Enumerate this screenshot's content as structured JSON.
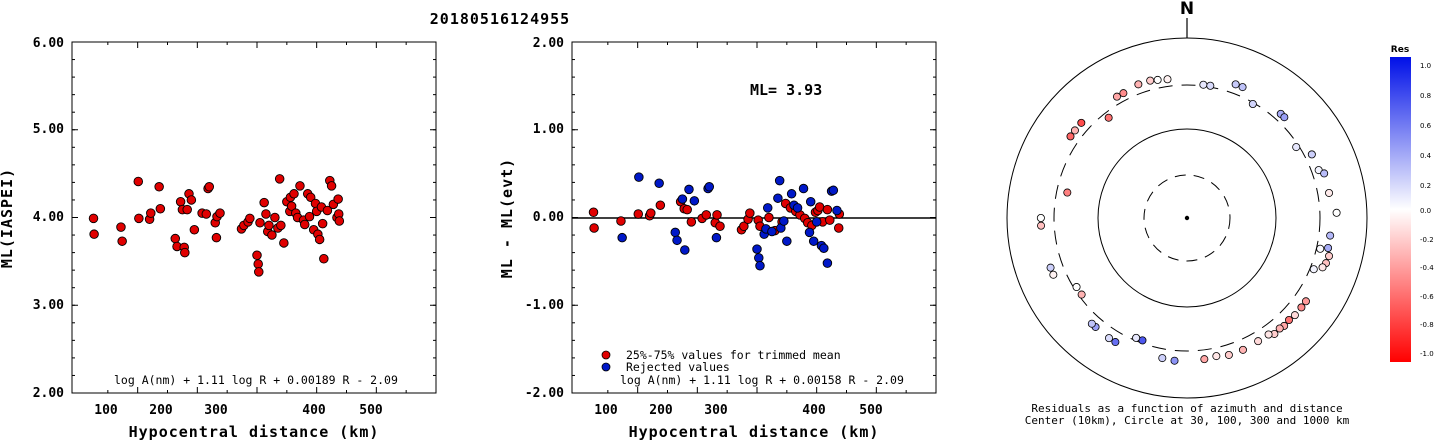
{
  "event_id": "20180516124955",
  "colors": {
    "trimmed": "#e00000",
    "rejected": "#0018c8",
    "frame": "#000000"
  },
  "left_chart": {
    "ylabel": "ML(IASPEI)",
    "xlabel": "Hypocentral distance (km)",
    "formula": "log A(nm) + 1.11 log R + 0.00189 R - 2.09",
    "ytick_labels": [
      "2.00",
      "3.00",
      "4.00",
      "5.00",
      "6.00"
    ],
    "xtick_labels": [
      "100",
      "200",
      "300",
      "400",
      "500"
    ]
  },
  "mid_chart": {
    "ylabel": "ML - ML(evt)",
    "xlabel": "Hypocentral distance (km)",
    "formula": "log A(nm) + 1.11 log R + 0.00158 R - 2.09",
    "ml_text": "ML= 3.93",
    "legend_trimmed": "25%-75% values for trimmed mean",
    "legend_rejected": "Rejected values",
    "ytick_labels": [
      "-2.00",
      "-1.00",
      "0.00",
      "1.00",
      "2.00"
    ],
    "xtick_labels": [
      "100",
      "200",
      "300",
      "400",
      "500"
    ]
  },
  "polar": {
    "north_label": "N",
    "caption_line1": "Residuals as a function of azimuth and distance",
    "caption_line2": "Center (10km), Circle at 30, 100, 300 and 1000 km",
    "colorbar_title": "Res",
    "colorbar_labels": [
      "1.0",
      "0.8",
      "0.6",
      "0.4",
      "0.2",
      "0.0",
      "-0.2",
      "-0.4",
      "-0.6",
      "-0.8",
      "-1.0"
    ]
  },
  "chart_data": [
    {
      "type": "scatter",
      "title": "20180516124955",
      "xlabel": "Hypocentral distance (km)",
      "ylabel": "ML(IASPEI)",
      "xlim": [
        0,
        600
      ],
      "ylim": [
        2,
        6
      ],
      "x": [
        26,
        27,
        72,
        74,
        101,
        102,
        120,
        122,
        136,
        138,
        163,
        166,
        172,
        175,
        178,
        179,
        183,
        186,
        190,
        195,
        208,
        215,
        218,
        220,
        230,
        232,
        233,
        238,
        274,
        278,
        285,
        288,
        300,
        302,
        303,
        305,
        312,
        315,
        318,
        320,
        325,
        330,
        335,
        338,
        340,
        345,
        350,
        355,
        356,
        358,
        362,
        365,
        368,
        372,
        378,
        380,
        385,
        388,
        390,
        395,
        398,
        400,
        402,
        405,
        408,
        410,
        412,
        418,
        422,
        425,
        428,
        434,
        436,
        437,
        438
      ],
      "y": [
        3.99,
        3.81,
        3.89,
        3.73,
        4.41,
        3.99,
        3.98,
        4.05,
        4.35,
        4.1,
        3.76,
        3.67,
        4.18,
        4.09,
        3.66,
        3.6,
        4.09,
        4.27,
        4.2,
        3.86,
        4.05,
        4.04,
        4.33,
        4.35,
        3.94,
        3.77,
        4.01,
        4.05,
        3.87,
        3.91,
        3.95,
        3.99,
        3.57,
        3.47,
        3.38,
        3.94,
        4.17,
        4.04,
        3.84,
        3.91,
        3.8,
        4.0,
        3.88,
        4.44,
        3.91,
        3.71,
        4.18,
        4.07,
        4.23,
        4.13,
        4.27,
        4.05,
        4.0,
        4.36,
        3.97,
        3.92,
        4.27,
        4.01,
        4.23,
        3.86,
        4.16,
        4.07,
        3.81,
        3.75,
        4.12,
        3.93,
        3.53,
        4.08,
        4.42,
        4.36,
        4.15,
        4.0,
        4.21,
        4.04,
        3.96
      ],
      "series": [
        {
          "name": "25%-75% values for trimmed mean",
          "color": "#e00000"
        }
      ]
    },
    {
      "type": "scatter",
      "xlabel": "Hypocentral distance (km)",
      "ylabel": "ML - ML(evt)",
      "xlim": [
        0,
        600
      ],
      "ylim": [
        -2,
        2
      ],
      "annotation": "ML= 3.93",
      "reference_line_y": 0,
      "series": [
        {
          "name": "25%-75% values for trimmed mean",
          "color": "#e00000",
          "x": [
            26,
            27,
            72,
            101,
            120,
            122,
            138,
            172,
            178,
            183,
            190,
            208,
            215,
            230,
            233,
            238,
            274,
            278,
            285,
            288,
            302,
            305,
            320,
            330,
            342,
            348,
            356,
            365,
            372,
            380,
            385,
            392,
            398,
            402,
            405,
            410,
            418,
            422,
            437,
            438
          ],
          "y": [
            0.06,
            -0.12,
            -0.04,
            0.04,
            0.02,
            0.05,
            0.14,
            0.18,
            0.1,
            0.09,
            -0.05,
            -0.01,
            0.03,
            -0.06,
            0.03,
            -0.1,
            -0.14,
            -0.1,
            -0.02,
            0.05,
            -0.03,
            -0.1,
            0.0,
            -0.15,
            -0.05,
            0.16,
            0.11,
            0.07,
            0.03,
            -0.01,
            -0.06,
            -0.09,
            0.06,
            0.08,
            0.12,
            -0.05,
            0.09,
            -0.03,
            -0.12,
            0.04
          ]
        },
        {
          "name": "Rejected values",
          "color": "#0018c8",
          "x": [
            74,
            102,
            136,
            163,
            166,
            175,
            179,
            186,
            195,
            218,
            220,
            232,
            300,
            303,
            305,
            312,
            315,
            318,
            325,
            335,
            338,
            340,
            345,
            350,
            358,
            362,
            368,
            378,
            388,
            390,
            395,
            400,
            408,
            412,
            418,
            425,
            428,
            434
          ],
          "y": [
            -0.23,
            0.46,
            0.39,
            -0.17,
            -0.26,
            0.21,
            -0.37,
            0.32,
            0.19,
            0.33,
            0.35,
            -0.23,
            -0.36,
            -0.46,
            -0.55,
            -0.19,
            -0.13,
            0.11,
            -0.16,
            0.22,
            0.42,
            -0.12,
            -0.04,
            -0.27,
            0.27,
            0.14,
            0.11,
            0.33,
            -0.17,
            0.18,
            -0.27,
            -0.05,
            -0.32,
            -0.35,
            -0.52,
            0.3,
            0.31,
            0.08
          ]
        }
      ]
    },
    {
      "type": "scatter",
      "subtype": "polar",
      "description_printed": "Residuals as a function of azimuth and distance",
      "rings_km": [
        30,
        100,
        300,
        1000
      ],
      "center_km": 10,
      "colorbar_range": [
        -1.0,
        1.0
      ],
      "points": [
        {
          "az": 7,
          "dist": 310,
          "res": 0.1
        },
        {
          "az": 10,
          "dist": 310,
          "res": 0.15
        },
        {
          "az": 20,
          "dist": 380,
          "res": 0.22
        },
        {
          "az": 23,
          "dist": 380,
          "res": 0.25
        },
        {
          "az": 30,
          "dist": 290,
          "res": 0.18
        },
        {
          "az": 42,
          "dist": 360,
          "res": 0.35
        },
        {
          "az": 44,
          "dist": 360,
          "res": 0.4
        },
        {
          "az": 57,
          "dist": 280,
          "res": 0.1
        },
        {
          "az": 63,
          "dist": 360,
          "res": 0.2
        },
        {
          "az": 70,
          "dist": 360,
          "res": 0.05
        },
        {
          "az": 72,
          "dist": 400,
          "res": 0.28
        },
        {
          "az": 80,
          "dist": 400,
          "res": -0.08
        },
        {
          "az": 88,
          "dist": 460,
          "res": 0.0
        },
        {
          "az": 97,
          "dist": 400,
          "res": 0.3
        },
        {
          "az": 102,
          "dist": 400,
          "res": 0.35
        },
        {
          "az": 103,
          "dist": 330,
          "res": 0.02
        },
        {
          "az": 105,
          "dist": 430,
          "res": -0.2
        },
        {
          "az": 108,
          "dist": 420,
          "res": -0.25
        },
        {
          "az": 110,
          "dist": 400,
          "res": -0.1
        },
        {
          "az": 112,
          "dist": 330,
          "res": 0.05
        },
        {
          "az": 125,
          "dist": 410,
          "res": -0.4
        },
        {
          "az": 128,
          "dist": 410,
          "res": -0.45
        },
        {
          "az": 132,
          "dist": 410,
          "res": -0.15
        },
        {
          "az": 135,
          "dist": 400,
          "res": -0.55
        },
        {
          "az": 138,
          "dist": 410,
          "res": -0.35
        },
        {
          "az": 140,
          "dist": 400,
          "res": -0.3
        },
        {
          "az": 143,
          "dist": 410,
          "res": -0.2
        },
        {
          "az": 145,
          "dist": 380,
          "res": -0.1
        },
        {
          "az": 150,
          "dist": 380,
          "res": -0.15
        },
        {
          "az": 157,
          "dist": 390,
          "res": -0.3
        },
        {
          "az": 163,
          "dist": 390,
          "res": -0.2
        },
        {
          "az": 168,
          "dist": 370,
          "res": -0.1
        },
        {
          "az": 173,
          "dist": 380,
          "res": -0.35
        },
        {
          "az": 185,
          "dist": 390,
          "res": 0.45
        },
        {
          "az": 190,
          "dist": 380,
          "res": 0.2
        },
        {
          "az": 200,
          "dist": 280,
          "res": 0.7
        },
        {
          "az": 203,
          "dist": 280,
          "res": 0.1
        },
        {
          "az": 210,
          "dist": 390,
          "res": 0.6
        },
        {
          "az": 213,
          "dist": 390,
          "res": 0.15
        },
        {
          "az": 220,
          "dist": 380,
          "res": 0.4
        },
        {
          "az": 222,
          "dist": 380,
          "res": 0.25
        },
        {
          "az": 234,
          "dist": 280,
          "res": -0.3
        },
        {
          "az": 238,
          "dist": 280,
          "res": 0.0
        },
        {
          "az": 247,
          "dist": 410,
          "res": -0.05
        },
        {
          "az": 250,
          "dist": 410,
          "res": 0.2
        },
        {
          "az": 267,
          "dist": 420,
          "res": -0.25
        },
        {
          "az": 270,
          "dist": 420,
          "res": 0.0
        },
        {
          "az": 282,
          "dist": 230,
          "res": -0.5
        },
        {
          "az": 305,
          "dist": 380,
          "res": -0.6
        },
        {
          "az": 308,
          "dist": 380,
          "res": -0.3
        },
        {
          "az": 312,
          "dist": 380,
          "res": -0.7
        },
        {
          "az": 322,
          "dist": 260,
          "res": -0.55
        },
        {
          "az": 330,
          "dist": 360,
          "res": -0.35
        },
        {
          "az": 333,
          "dist": 360,
          "res": -0.45
        },
        {
          "az": 340,
          "dist": 380,
          "res": -0.3
        },
        {
          "az": 345,
          "dist": 380,
          "res": -0.2
        },
        {
          "az": 348,
          "dist": 370,
          "res": 0.0
        },
        {
          "az": 352,
          "dist": 360,
          "res": -0.05
        }
      ]
    }
  ]
}
